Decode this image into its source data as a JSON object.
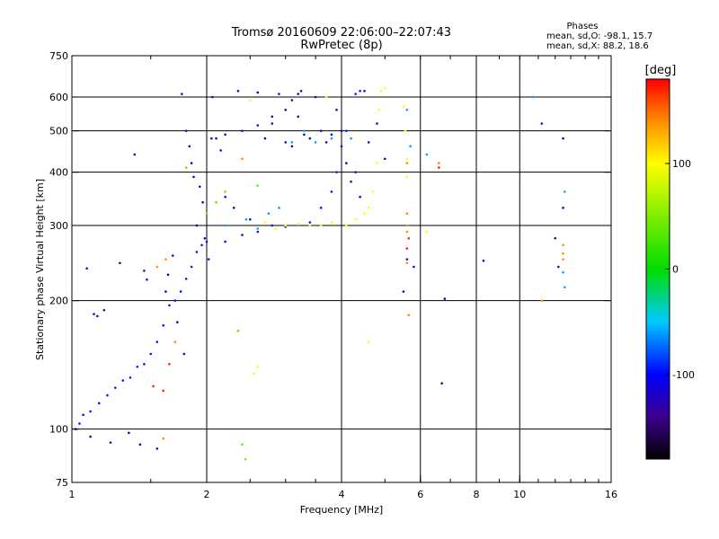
{
  "chart_data": {
    "type": "scatter",
    "title": "Tromsø 20160609 22:06:00–22:07:43",
    "subtitle": "RwPretec (8p)",
    "xlabel": "Frequency [MHz]",
    "ylabel": "Stationary phase Virtual Height [km]",
    "x_scale": "log2",
    "y_scale": "log",
    "xlim": [
      1,
      16
    ],
    "ylim": [
      75,
      750
    ],
    "x_ticks": [
      1,
      2,
      4,
      6,
      8,
      10,
      16
    ],
    "y_ticks": [
      75,
      100,
      200,
      300,
      400,
      500,
      600,
      750
    ],
    "grid_x": [
      2,
      4,
      6,
      8,
      10
    ],
    "grid_y": [
      100,
      200,
      300,
      400,
      500,
      600
    ],
    "phase_info": {
      "title": "Phases",
      "line1": "mean, sd,O: -98.1, 15.7",
      "line2": "mean, sd,X:  88.2, 18.6"
    },
    "colorbar": {
      "label": "[deg]",
      "range": [
        -180,
        180
      ],
      "ticks": [
        "100",
        "0",
        "-100"
      ],
      "tick_values": [
        100,
        0,
        -100
      ]
    },
    "series": [
      {
        "color_phase": -120,
        "points": [
          [
            1.08,
            238
          ],
          [
            1.1,
            96
          ],
          [
            1.12,
            186
          ],
          [
            1.14,
            184
          ],
          [
            1.18,
            190
          ],
          [
            1.22,
            93
          ],
          [
            1.28,
            245
          ],
          [
            1.34,
            98
          ],
          [
            1.38,
            440
          ],
          [
            1.42,
            92
          ],
          [
            1.45,
            235
          ],
          [
            1.47,
            224
          ],
          [
            1.55,
            90
          ],
          [
            1.62,
            210
          ],
          [
            1.64,
            230
          ],
          [
            1.68,
            255
          ],
          [
            1.72,
            178
          ],
          [
            1.78,
            150
          ],
          [
            1.76,
            610
          ],
          [
            1.8,
            500
          ],
          [
            1.83,
            460
          ],
          [
            1.85,
            420
          ],
          [
            1.87,
            390
          ],
          [
            1.9,
            300
          ],
          [
            1.93,
            370
          ],
          [
            1.96,
            340
          ],
          [
            1.98,
            280
          ],
          [
            2.02,
            250
          ],
          [
            2.06,
            600
          ],
          [
            2.1,
            480
          ],
          [
            2.15,
            450
          ],
          [
            2.2,
            350
          ],
          [
            2.3,
            330
          ],
          [
            2.35,
            620
          ],
          [
            2.5,
            310
          ],
          [
            2.6,
            615
          ],
          [
            2.7,
            480
          ],
          [
            2.8,
            520
          ],
          [
            2.9,
            610
          ],
          [
            3.0,
            470
          ],
          [
            3.1,
            460
          ],
          [
            3.2,
            540
          ],
          [
            3.3,
            490
          ],
          [
            3.4,
            480
          ],
          [
            3.5,
            600
          ],
          [
            3.6,
            500
          ],
          [
            3.7,
            470
          ],
          [
            3.8,
            490
          ],
          [
            3.9,
            560
          ],
          [
            4.0,
            500
          ],
          [
            4.1,
            420
          ],
          [
            4.2,
            380
          ],
          [
            4.3,
            400
          ],
          [
            4.4,
            350
          ],
          [
            4.5,
            620
          ],
          [
            4.6,
            470
          ],
          [
            4.8,
            520
          ],
          [
            5.0,
            430
          ],
          [
            5.5,
            210
          ],
          [
            5.6,
            250
          ],
          [
            5.8,
            240
          ],
          [
            6.7,
            128
          ],
          [
            6.8,
            202
          ],
          [
            8.3,
            248
          ],
          [
            11.2,
            520
          ],
          [
            12.0,
            280
          ],
          [
            12.2,
            240
          ],
          [
            12.5,
            330
          ],
          [
            12.5,
            480
          ]
        ]
      },
      {
        "color_phase": -95,
        "points": [
          [
            1.02,
            100
          ],
          [
            1.04,
            103
          ],
          [
            1.06,
            108
          ],
          [
            1.1,
            110
          ],
          [
            1.15,
            115
          ],
          [
            1.2,
            120
          ],
          [
            1.25,
            125
          ],
          [
            1.3,
            130
          ],
          [
            1.35,
            132
          ],
          [
            1.4,
            140
          ],
          [
            1.45,
            142
          ],
          [
            1.5,
            150
          ],
          [
            1.55,
            160
          ],
          [
            1.6,
            175
          ],
          [
            1.65,
            195
          ],
          [
            1.7,
            200
          ],
          [
            1.75,
            210
          ],
          [
            1.8,
            225
          ],
          [
            1.85,
            240
          ],
          [
            1.9,
            260
          ],
          [
            1.95,
            270
          ],
          [
            2.0,
            275
          ],
          [
            2.2,
            275
          ],
          [
            2.4,
            285
          ],
          [
            2.6,
            290
          ],
          [
            2.8,
            300
          ],
          [
            3.0,
            298
          ],
          [
            3.2,
            302
          ],
          [
            3.4,
            305
          ],
          [
            3.6,
            330
          ],
          [
            3.8,
            360
          ],
          [
            3.9,
            400
          ],
          [
            4.0,
            460
          ],
          [
            4.1,
            500
          ],
          [
            4.3,
            610
          ],
          [
            4.4,
            620
          ]
        ]
      },
      {
        "color_phase": -130,
        "points": [
          [
            2.05,
            480
          ],
          [
            2.2,
            490
          ],
          [
            2.4,
            500
          ],
          [
            2.6,
            515
          ],
          [
            2.8,
            540
          ],
          [
            3.0,
            560
          ],
          [
            3.1,
            590
          ],
          [
            3.2,
            610
          ],
          [
            3.25,
            620
          ]
        ]
      },
      {
        "color_phase": -60,
        "points": [
          [
            2.2,
            300
          ],
          [
            2.45,
            310
          ],
          [
            2.6,
            295
          ],
          [
            2.75,
            320
          ],
          [
            2.9,
            330
          ],
          [
            3.1,
            470
          ],
          [
            3.3,
            500
          ],
          [
            3.5,
            470
          ],
          [
            3.8,
            480
          ],
          [
            4.2,
            480
          ],
          [
            5.6,
            560
          ],
          [
            5.7,
            460
          ],
          [
            6.2,
            440
          ],
          [
            10.7,
            600
          ],
          [
            12.6,
            360
          ],
          [
            12.6,
            215
          ],
          [
            12.5,
            233
          ]
        ]
      },
      {
        "color_phase": 40,
        "points": [
          [
            1.8,
            410
          ],
          [
            2.0,
            320
          ],
          [
            2.1,
            340
          ],
          [
            2.2,
            360
          ],
          [
            2.35,
            170
          ],
          [
            2.4,
            92
          ],
          [
            2.44,
            85
          ],
          [
            2.6,
            372
          ]
        ]
      },
      {
        "color_phase": 100,
        "points": [
          [
            2.55,
            135
          ],
          [
            2.6,
            140
          ],
          [
            2.7,
            305
          ],
          [
            2.85,
            295
          ],
          [
            3.0,
            300
          ],
          [
            3.2,
            302
          ],
          [
            3.4,
            300
          ],
          [
            3.6,
            301
          ],
          [
            3.8,
            305
          ],
          [
            4.1,
            300
          ],
          [
            4.3,
            310
          ],
          [
            4.5,
            320
          ],
          [
            4.6,
            330
          ],
          [
            4.7,
            360
          ],
          [
            4.8,
            420
          ],
          [
            4.85,
            560
          ],
          [
            4.9,
            620
          ],
          [
            5.0,
            630
          ],
          [
            5.5,
            570
          ],
          [
            5.55,
            500
          ],
          [
            5.6,
            430
          ],
          [
            5.6,
            390
          ],
          [
            6.2,
            290
          ],
          [
            4.6,
            160
          ],
          [
            3.7,
            600
          ],
          [
            2.5,
            590
          ]
        ]
      },
      {
        "color_phase": 140,
        "points": [
          [
            1.55,
            240
          ],
          [
            1.6,
            95
          ],
          [
            1.62,
            250
          ],
          [
            1.7,
            160
          ],
          [
            2.4,
            430
          ],
          [
            5.6,
            320
          ],
          [
            5.6,
            290
          ],
          [
            5.62,
            300
          ],
          [
            5.65,
            185
          ],
          [
            5.6,
            245
          ],
          [
            5.6,
            420
          ],
          [
            6.6,
            420
          ],
          [
            12.5,
            250
          ],
          [
            12.5,
            258
          ],
          [
            12.5,
            270
          ],
          [
            11.2,
            200
          ]
        ]
      },
      {
        "color_phase": 170,
        "points": [
          [
            1.52,
            126
          ],
          [
            1.6,
            123
          ],
          [
            1.65,
            142
          ],
          [
            5.6,
            265
          ],
          [
            5.65,
            280
          ],
          [
            6.6,
            410
          ]
        ]
      }
    ]
  }
}
